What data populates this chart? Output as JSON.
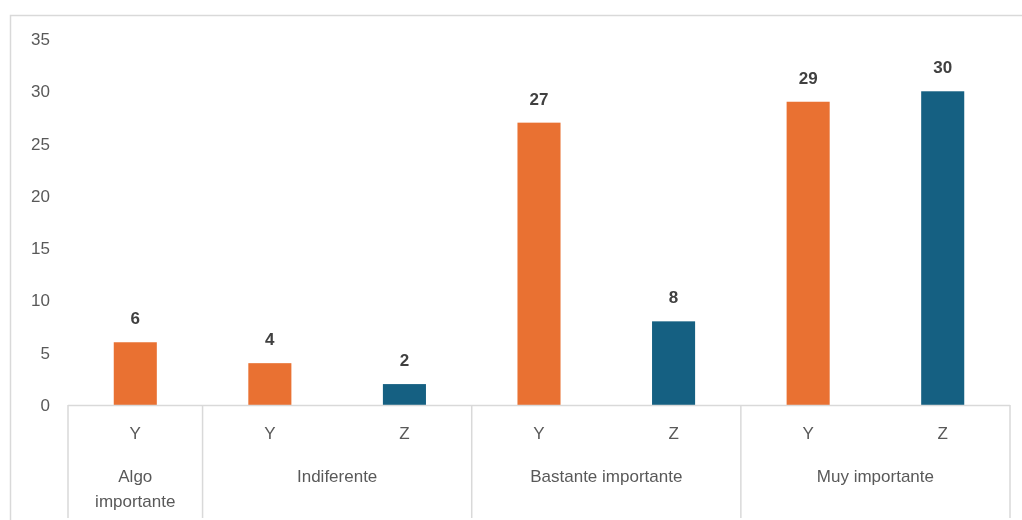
{
  "chart_data": {
    "type": "bar",
    "categories": [
      "Algo importante",
      "Indiferente",
      "Bastante importante",
      "Muy importante"
    ],
    "series": [
      {
        "name": "Y",
        "color": "#e97132",
        "values": [
          6,
          4,
          27,
          29
        ]
      },
      {
        "name": "Z",
        "color": "#156082",
        "values": [
          null,
          2,
          8,
          30
        ]
      }
    ],
    "ylim": [
      0,
      35
    ],
    "yticks": [
      0,
      5,
      10,
      15,
      20,
      25,
      30,
      35
    ],
    "data_labels": true
  }
}
